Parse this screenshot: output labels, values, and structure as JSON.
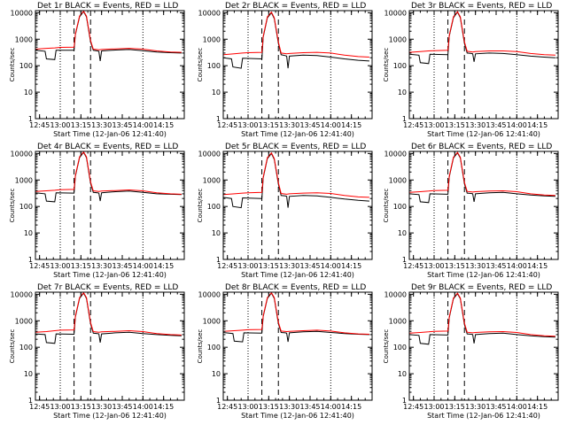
{
  "colors": {
    "events": "#000000",
    "lld": "#ff0000",
    "frame": "#000000",
    "background": "#ffffff"
  },
  "shared": {
    "xlabel": "Start Time (12-Jan-06 12:41:40)",
    "ylabel": "Counts/sec",
    "x_tick_labels": [
      "12:45",
      "13:00",
      "13:15",
      "13:30",
      "13:45",
      "14:00",
      "14:15"
    ],
    "y_tick_labels": [
      "1",
      "10",
      "100",
      "1000",
      "10000"
    ],
    "x_ticks_min": [
      45,
      60,
      75,
      90,
      105,
      120,
      135
    ],
    "y_ticks": [
      1,
      10,
      100,
      1000,
      10000
    ]
  },
  "chart_data": [
    {
      "type": "line",
      "title": "Det 1r BLACK = Events, RED = LLD",
      "xlabel": "Start Time (12-Jan-06 12:41:40)",
      "ylabel": "Counts/sec",
      "xlim_min": [
        42,
        150
      ],
      "ylim": [
        1,
        12000
      ],
      "yscale": "log",
      "xscale": "time (minutes after 12:00)",
      "dashed_vlines_min": [
        70,
        82
      ],
      "dotted_vlines_min": [
        60,
        120
      ],
      "series": [
        {
          "color": "#000000",
          "x": [
            42,
            49,
            50,
            56,
            57,
            70,
            71,
            74,
            77,
            79,
            82,
            84,
            87,
            88,
            89,
            90,
            100,
            110,
            120,
            130,
            140,
            148
          ],
          "y": [
            380,
            350,
            180,
            170,
            380,
            380,
            1500,
            7000,
            11000,
            7000,
            800,
            380,
            360,
            350,
            150,
            360,
            390,
            410,
            370,
            330,
            310,
            300
          ]
        },
        {
          "color": "#ff0000",
          "x": [
            42,
            50,
            56,
            60,
            70,
            71,
            74,
            77,
            79,
            82,
            84,
            88,
            90,
            100,
            110,
            120,
            130,
            140,
            148
          ],
          "y": [
            420,
            450,
            470,
            490,
            500,
            1600,
            7500,
            11500,
            7500,
            900,
            420,
            400,
            410,
            430,
            450,
            420,
            360,
            330,
            320
          ]
        }
      ]
    },
    {
      "type": "line",
      "title": "Det 2r BLACK = Events, RED = LLD",
      "xlabel": "Start Time (12-Jan-06 12:41:40)",
      "ylabel": "Counts/sec",
      "xlim_min": [
        42,
        150
      ],
      "ylim": [
        1,
        12000
      ],
      "yscale": "log",
      "xscale": "time (minutes after 12:00)",
      "dashed_vlines_min": [
        70,
        82
      ],
      "dotted_vlines_min": [
        60,
        120
      ],
      "series": [
        {
          "color": "#000000",
          "x": [
            42,
            48,
            49,
            55,
            56,
            70,
            71,
            74,
            77,
            79,
            82,
            84,
            87,
            88,
            89,
            90,
            100,
            110,
            120,
            130,
            140,
            148
          ],
          "y": [
            200,
            180,
            90,
            80,
            190,
            180,
            1200,
            6500,
            10000,
            6000,
            700,
            260,
            240,
            230,
            80,
            230,
            250,
            240,
            210,
            180,
            160,
            150
          ]
        },
        {
          "color": "#ff0000",
          "x": [
            42,
            50,
            56,
            60,
            70,
            71,
            74,
            77,
            79,
            82,
            84,
            88,
            90,
            100,
            110,
            120,
            130,
            140,
            148
          ],
          "y": [
            260,
            280,
            300,
            310,
            320,
            1300,
            7000,
            10500,
            6500,
            800,
            300,
            280,
            290,
            310,
            320,
            300,
            250,
            220,
            210
          ]
        }
      ]
    },
    {
      "type": "line",
      "title": "Det 3r BLACK = Events, RED = LLD",
      "xlabel": "Start Time (12-Jan-06 12:41:40)",
      "ylabel": "Counts/sec",
      "xlim_min": [
        42,
        150
      ],
      "ylim": [
        1,
        12000
      ],
      "yscale": "log",
      "xscale": "time (minutes after 12:00)",
      "dashed_vlines_min": [
        70,
        82
      ],
      "dotted_vlines_min": [
        60,
        120
      ],
      "series": [
        {
          "color": "#000000",
          "x": [
            42,
            49,
            50,
            56,
            57,
            70,
            71,
            74,
            77,
            79,
            82,
            84,
            87,
            88,
            89,
            90,
            100,
            110,
            120,
            130,
            140,
            148
          ],
          "y": [
            270,
            250,
            130,
            120,
            270,
            260,
            1300,
            6500,
            10500,
            6500,
            700,
            300,
            290,
            280,
            140,
            280,
            300,
            290,
            260,
            230,
            210,
            200
          ]
        },
        {
          "color": "#ff0000",
          "x": [
            42,
            50,
            56,
            60,
            70,
            71,
            74,
            77,
            79,
            82,
            84,
            88,
            90,
            100,
            110,
            120,
            130,
            140,
            148
          ],
          "y": [
            320,
            340,
            360,
            370,
            380,
            1400,
            7000,
            11000,
            7000,
            800,
            350,
            330,
            340,
            360,
            360,
            340,
            290,
            260,
            250
          ]
        }
      ]
    },
    {
      "type": "line",
      "title": "Det 4r BLACK = Events, RED = LLD",
      "xlabel": "Start Time (12-Jan-06 12:41:40)",
      "ylabel": "Counts/sec",
      "xlim_min": [
        42,
        150
      ],
      "ylim": [
        1,
        12000
      ],
      "yscale": "log",
      "xscale": "time (minutes after 12:00)",
      "dashed_vlines_min": [
        70,
        82
      ],
      "dotted_vlines_min": [
        60,
        120
      ],
      "series": [
        {
          "color": "#000000",
          "x": [
            42,
            49,
            50,
            56,
            57,
            70,
            71,
            74,
            77,
            79,
            82,
            84,
            87,
            88,
            89,
            90,
            100,
            110,
            120,
            130,
            140,
            148
          ],
          "y": [
            330,
            300,
            160,
            150,
            330,
            320,
            1400,
            7000,
            11000,
            7000,
            750,
            340,
            330,
            320,
            160,
            330,
            360,
            380,
            340,
            300,
            290,
            280
          ]
        },
        {
          "color": "#ff0000",
          "x": [
            42,
            50,
            56,
            60,
            70,
            71,
            74,
            77,
            79,
            82,
            84,
            88,
            90,
            100,
            110,
            120,
            130,
            140,
            148
          ],
          "y": [
            370,
            390,
            410,
            430,
            440,
            1500,
            7500,
            11500,
            7500,
            850,
            390,
            370,
            380,
            400,
            420,
            390,
            330,
            300,
            290
          ]
        }
      ]
    },
    {
      "type": "line",
      "title": "Det 5r BLACK = Events, RED = LLD",
      "xlabel": "Start Time (12-Jan-06 12:41:40)",
      "ylabel": "Counts/sec",
      "xlim_min": [
        42,
        150
      ],
      "ylim": [
        1,
        12000
      ],
      "yscale": "log",
      "xscale": "time (minutes after 12:00)",
      "dashed_vlines_min": [
        70,
        82
      ],
      "dotted_vlines_min": [
        60,
        120
      ],
      "series": [
        {
          "color": "#000000",
          "x": [
            42,
            48,
            49,
            55,
            56,
            70,
            71,
            74,
            77,
            79,
            82,
            84,
            87,
            88,
            89,
            90,
            100,
            110,
            120,
            130,
            140,
            148
          ],
          "y": [
            220,
            200,
            100,
            90,
            210,
            200,
            1200,
            6500,
            10000,
            6000,
            700,
            260,
            250,
            240,
            90,
            240,
            260,
            250,
            220,
            190,
            170,
            160
          ]
        },
        {
          "color": "#ff0000",
          "x": [
            42,
            50,
            56,
            60,
            70,
            71,
            74,
            77,
            79,
            82,
            84,
            88,
            90,
            100,
            110,
            120,
            130,
            140,
            148
          ],
          "y": [
            280,
            300,
            320,
            330,
            340,
            1300,
            7000,
            10500,
            6500,
            800,
            310,
            290,
            300,
            320,
            330,
            310,
            260,
            230,
            220
          ]
        }
      ]
    },
    {
      "type": "line",
      "title": "Det 6r BLACK = Events, RED = LLD",
      "xlabel": "Start Time (12-Jan-06 12:41:40)",
      "ylabel": "Counts/sec",
      "xlim_min": [
        42,
        150
      ],
      "ylim": [
        1,
        12000
      ],
      "yscale": "log",
      "xscale": "time (minutes after 12:00)",
      "dashed_vlines_min": [
        70,
        82
      ],
      "dotted_vlines_min": [
        60,
        120
      ],
      "series": [
        {
          "color": "#000000",
          "x": [
            42,
            49,
            50,
            56,
            57,
            70,
            71,
            74,
            77,
            79,
            82,
            84,
            87,
            88,
            89,
            90,
            100,
            110,
            120,
            130,
            140,
            148
          ],
          "y": [
            300,
            280,
            150,
            140,
            300,
            290,
            1300,
            6800,
            10500,
            6800,
            720,
            320,
            310,
            300,
            150,
            300,
            330,
            340,
            300,
            270,
            250,
            240
          ]
        },
        {
          "color": "#ff0000",
          "x": [
            42,
            50,
            56,
            60,
            70,
            71,
            74,
            77,
            79,
            82,
            84,
            88,
            90,
            100,
            110,
            120,
            130,
            140,
            148
          ],
          "y": [
            340,
            360,
            380,
            400,
            410,
            1400,
            7200,
            11000,
            7200,
            820,
            370,
            350,
            360,
            380,
            390,
            360,
            300,
            270,
            260
          ]
        }
      ]
    },
    {
      "type": "line",
      "title": "Det 7r BLACK = Events, RED = LLD",
      "xlabel": "Start Time (12-Jan-06 12:41:40)",
      "ylabel": "Counts/sec",
      "xlim_min": [
        42,
        150
      ],
      "ylim": [
        1,
        12000
      ],
      "yscale": "log",
      "xscale": "time (minutes after 12:00)",
      "dashed_vlines_min": [
        70,
        82
      ],
      "dotted_vlines_min": [
        60,
        120
      ],
      "series": [
        {
          "color": "#000000",
          "x": [
            42,
            49,
            50,
            56,
            57,
            70,
            71,
            74,
            77,
            79,
            82,
            84,
            87,
            88,
            89,
            90,
            100,
            110,
            120,
            130,
            140,
            148
          ],
          "y": [
            320,
            300,
            150,
            140,
            320,
            310,
            1400,
            7000,
            11000,
            7000,
            760,
            340,
            330,
            320,
            150,
            320,
            350,
            370,
            330,
            300,
            280,
            270
          ]
        },
        {
          "color": "#ff0000",
          "x": [
            42,
            50,
            56,
            60,
            70,
            71,
            74,
            77,
            79,
            82,
            84,
            88,
            90,
            100,
            110,
            120,
            130,
            140,
            148
          ],
          "y": [
            370,
            390,
            420,
            440,
            450,
            1500,
            7500,
            11500,
            7500,
            860,
            390,
            370,
            380,
            400,
            420,
            390,
            330,
            300,
            290
          ]
        }
      ]
    },
    {
      "type": "line",
      "title": "Det 8r BLACK = Events, RED = LLD",
      "xlabel": "Start Time (12-Jan-06 12:41:40)",
      "ylabel": "Counts/sec",
      "xlim_min": [
        42,
        150
      ],
      "ylim": [
        1,
        12000
      ],
      "yscale": "log",
      "xscale": "time (minutes after 12:00)",
      "dashed_vlines_min": [
        70,
        82
      ],
      "dotted_vlines_min": [
        60,
        120
      ],
      "series": [
        {
          "color": "#000000",
          "x": [
            42,
            49,
            50,
            56,
            57,
            70,
            71,
            74,
            77,
            79,
            82,
            84,
            87,
            88,
            89,
            90,
            100,
            110,
            120,
            130,
            140,
            148
          ],
          "y": [
            360,
            330,
            170,
            160,
            350,
            340,
            1450,
            7000,
            11000,
            7000,
            780,
            360,
            350,
            340,
            160,
            350,
            380,
            400,
            360,
            330,
            310,
            300
          ]
        },
        {
          "color": "#ff0000",
          "x": [
            42,
            50,
            56,
            60,
            70,
            71,
            74,
            77,
            79,
            82,
            84,
            88,
            90,
            100,
            110,
            120,
            130,
            140,
            148
          ],
          "y": [
            400,
            420,
            440,
            460,
            470,
            1550,
            7500,
            11500,
            7500,
            880,
            410,
            390,
            400,
            420,
            440,
            410,
            350,
            320,
            310
          ]
        }
      ]
    },
    {
      "type": "line",
      "title": "Det 9r BLACK = Events, RED = LLD",
      "xlabel": "Start Time (12-Jan-06 12:41:40)",
      "ylabel": "Counts/sec",
      "xlim_min": [
        42,
        150
      ],
      "ylim": [
        1,
        12000
      ],
      "yscale": "log",
      "xscale": "time (minutes after 12:00)",
      "dashed_vlines_min": [
        70,
        82
      ],
      "dotted_vlines_min": [
        60,
        120
      ],
      "series": [
        {
          "color": "#000000",
          "x": [
            42,
            49,
            50,
            56,
            57,
            70,
            71,
            74,
            77,
            79,
            82,
            84,
            87,
            88,
            89,
            90,
            100,
            110,
            120,
            130,
            140,
            148
          ],
          "y": [
            300,
            280,
            140,
            130,
            300,
            290,
            1300,
            6800,
            10500,
            6800,
            720,
            320,
            310,
            300,
            140,
            300,
            330,
            340,
            300,
            270,
            250,
            240
          ]
        },
        {
          "color": "#ff0000",
          "x": [
            42,
            50,
            56,
            60,
            70,
            71,
            74,
            77,
            79,
            82,
            84,
            88,
            90,
            100,
            110,
            120,
            130,
            140,
            148
          ],
          "y": [
            340,
            360,
            380,
            400,
            410,
            1400,
            7200,
            11000,
            7200,
            820,
            370,
            350,
            360,
            380,
            390,
            360,
            300,
            270,
            260
          ]
        }
      ]
    }
  ]
}
